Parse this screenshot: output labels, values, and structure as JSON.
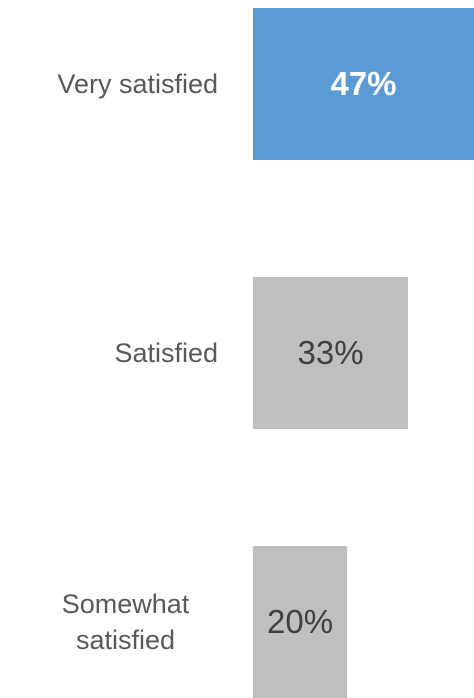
{
  "chart_data": {
    "type": "bar",
    "orientation": "horizontal",
    "categories": [
      "Very satisfied",
      "Satisfied",
      "Somewhat satisfied"
    ],
    "values": [
      47,
      33,
      20
    ],
    "value_labels": [
      "47%",
      "33%",
      "20%"
    ],
    "colors": [
      "#5b9bd5",
      "#bfbfbf",
      "#bfbfbf"
    ]
  }
}
